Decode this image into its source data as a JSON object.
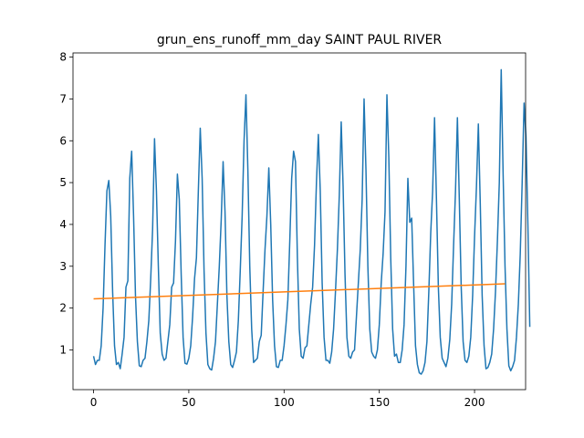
{
  "chart_data": {
    "type": "line",
    "title": "grun_ens_runoff_mm_day SAINT PAUL RIVER",
    "xlabel": "",
    "ylabel": "",
    "xlim": [
      -10.8,
      226.8
    ],
    "ylim": [
      0.05,
      8.1
    ],
    "xticks": [
      0,
      50,
      100,
      150,
      200
    ],
    "yticks": [
      1,
      2,
      3,
      4,
      5,
      6,
      7,
      8
    ],
    "grid": false,
    "legend": "none",
    "series": [
      {
        "color": "#1f77b4",
        "x_start": 0,
        "values": [
          0.85,
          0.65,
          0.75,
          0.75,
          1.1,
          2.0,
          3.5,
          4.8,
          5.05,
          4.2,
          2.4,
          1.1,
          0.65,
          0.7,
          0.55,
          0.9,
          1.3,
          2.5,
          2.65,
          5.1,
          5.75,
          4.2,
          2.3,
          1.2,
          0.62,
          0.6,
          0.75,
          0.8,
          1.2,
          1.7,
          2.7,
          3.9,
          6.05,
          4.8,
          3.0,
          1.4,
          0.9,
          0.75,
          0.8,
          1.2,
          1.6,
          2.5,
          2.6,
          3.6,
          5.2,
          4.6,
          2.8,
          1.3,
          0.68,
          0.66,
          0.8,
          1.1,
          1.8,
          2.7,
          3.2,
          4.8,
          6.3,
          5.1,
          2.9,
          1.4,
          0.65,
          0.55,
          0.52,
          0.8,
          1.2,
          2.1,
          3.0,
          4.1,
          5.5,
          4.3,
          2.3,
          1.2,
          0.65,
          0.58,
          0.75,
          0.95,
          1.7,
          2.9,
          4.2,
          6.0,
          7.1,
          5.3,
          3.0,
          1.5,
          0.7,
          0.75,
          0.8,
          1.2,
          1.35,
          2.4,
          3.4,
          4.2,
          5.35,
          4.0,
          2.2,
          1.1,
          0.6,
          0.58,
          0.75,
          0.75,
          1.1,
          1.6,
          2.2,
          3.6,
          5.1,
          5.75,
          5.5,
          3.2,
          1.5,
          0.85,
          0.8,
          1.05,
          1.1,
          1.6,
          2.1,
          2.5,
          3.5,
          5.0,
          6.15,
          4.8,
          2.6,
          1.3,
          0.75,
          0.75,
          0.68,
          0.95,
          1.5,
          2.4,
          3.4,
          4.7,
          6.45,
          4.9,
          2.8,
          1.3,
          0.85,
          0.8,
          0.95,
          1.0,
          1.8,
          2.6,
          3.4,
          4.6,
          7.0,
          5.3,
          3.0,
          1.5,
          0.95,
          0.85,
          0.8,
          1.0,
          1.6,
          2.6,
          3.3,
          4.3,
          7.1,
          5.6,
          3.2,
          1.5,
          0.85,
          0.9,
          0.7,
          0.7,
          1.0,
          1.6,
          3.0,
          5.1,
          4.05,
          4.15,
          2.6,
          1.1,
          0.65,
          0.45,
          0.42,
          0.5,
          0.7,
          1.2,
          2.4,
          3.8,
          4.8,
          6.55,
          4.6,
          2.5,
          1.3,
          0.8,
          0.7,
          0.6,
          0.8,
          1.25,
          2.1,
          3.5,
          4.8,
          6.55,
          4.6,
          2.5,
          1.2,
          0.75,
          0.7,
          0.85,
          1.3,
          2.3,
          3.7,
          4.9,
          6.4,
          4.5,
          2.3,
          1.1,
          0.55,
          0.58,
          0.7,
          0.9,
          1.5,
          2.4,
          3.6,
          5.0,
          7.7,
          5.2,
          3.0,
          1.5,
          0.62,
          0.5,
          0.6,
          0.75,
          1.3,
          2.1,
          3.3,
          5.0,
          6.9,
          6.1,
          4.0,
          1.55
        ]
      },
      {
        "color": "#ff7f0e",
        "x": [
          0,
          216
        ],
        "values": [
          2.22,
          2.58
        ]
      }
    ]
  }
}
